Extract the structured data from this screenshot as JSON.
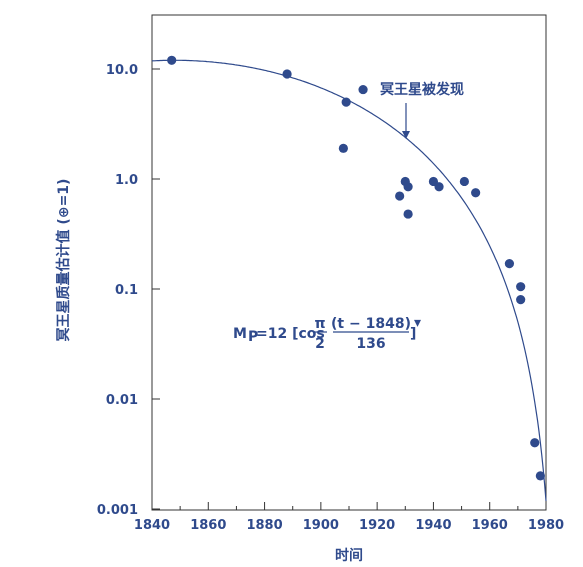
{
  "colors": {
    "accent": "#2f4a8c",
    "plot_frame": "#333333",
    "background": "#ffffff"
  },
  "chart_data": {
    "type": "scatter",
    "xlabel": "时间",
    "ylabel": "冥王星质量估计值 (⊕=1)",
    "x_scale": "linear",
    "y_scale": "log",
    "xlim": [
      1840,
      1980
    ],
    "ylim": [
      0.001,
      25
    ],
    "x_ticks": [
      "1840",
      "1860",
      "1880",
      "1900",
      "1920",
      "1940",
      "1960",
      "1980"
    ],
    "y_ticks": [
      "10.0",
      "1.0",
      "0.1",
      "0.01",
      "0.001"
    ],
    "grid": false,
    "points": [
      {
        "x": 1847,
        "y": 12
      },
      {
        "x": 1888,
        "y": 9
      },
      {
        "x": 1908,
        "y": 1.9
      },
      {
        "x": 1909,
        "y": 5
      },
      {
        "x": 1915,
        "y": 6.5
      },
      {
        "x": 1928,
        "y": 0.7
      },
      {
        "x": 1930,
        "y": 0.95
      },
      {
        "x": 1931,
        "y": 0.85
      },
      {
        "x": 1931,
        "y": 0.48
      },
      {
        "x": 1940,
        "y": 0.95
      },
      {
        "x": 1942,
        "y": 0.85
      },
      {
        "x": 1951,
        "y": 0.95
      },
      {
        "x": 1955,
        "y": 0.75
      },
      {
        "x": 1967,
        "y": 0.17
      },
      {
        "x": 1971,
        "y": 0.105
      },
      {
        "x": 1971,
        "y": 0.08
      },
      {
        "x": 1976,
        "y": 0.004
      },
      {
        "x": 1978,
        "y": 0.002
      }
    ],
    "curve": {
      "type": "model",
      "formula_label": {
        "lhs": "M",
        "sub": "P",
        "eq": "=12 [cos",
        "frac_left_num": "π",
        "frac_left_den": "2",
        "frac_right_num": "(t − 1848)",
        "frac_right_den": "136",
        "close": "]",
        "exp": "▾"
      }
    },
    "annotations": [
      {
        "text": "冥王星被发现",
        "x": 1930
      }
    ]
  }
}
